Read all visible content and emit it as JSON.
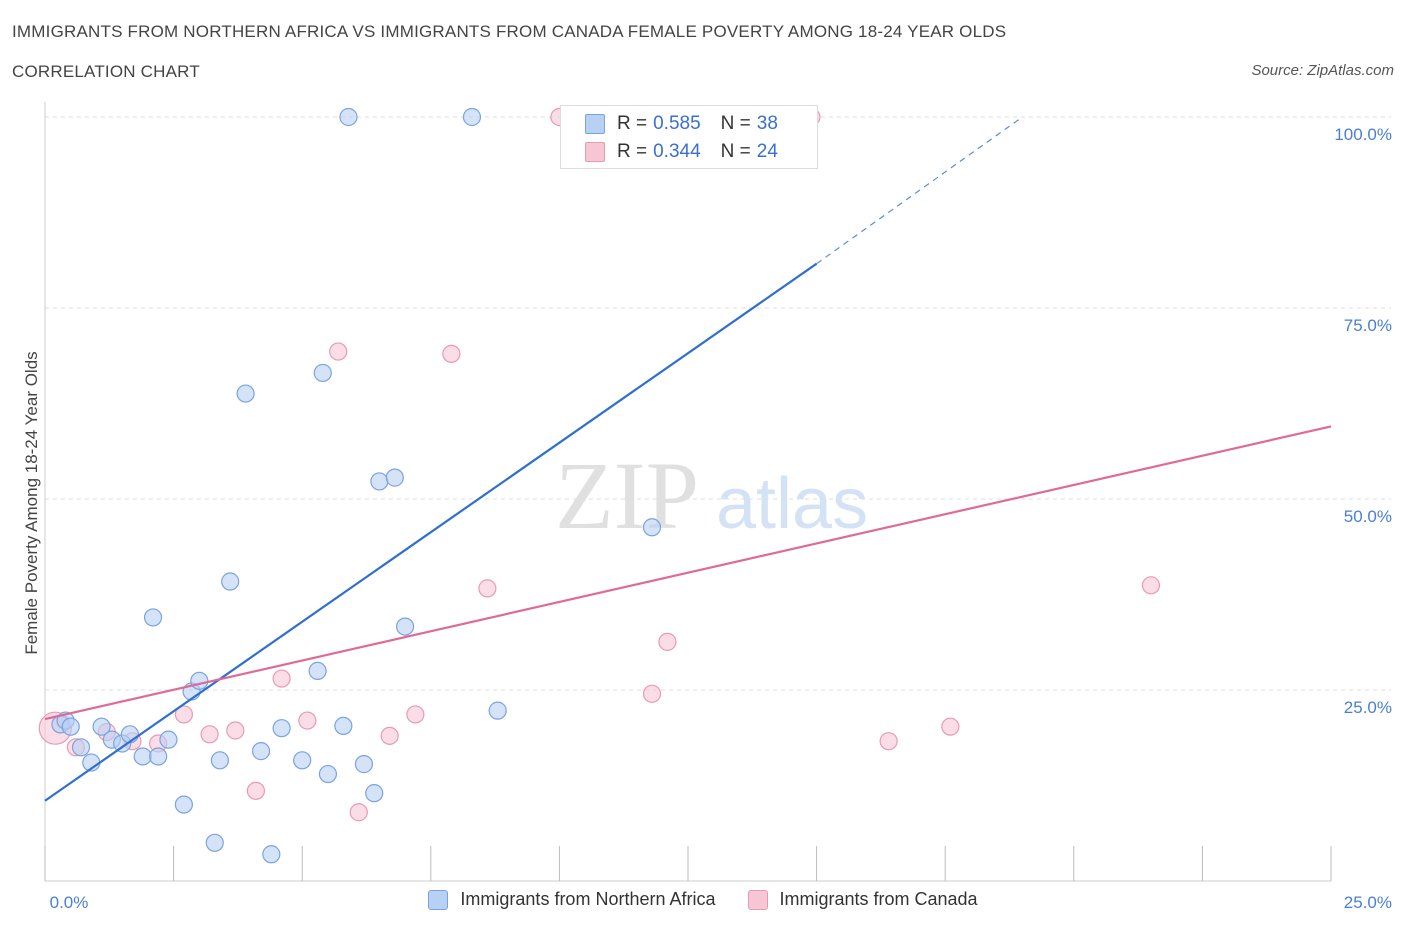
{
  "header": {
    "title": "IMMIGRANTS FROM NORTHERN AFRICA VS IMMIGRANTS FROM CANADA FEMALE POVERTY AMONG 18-24 YEAR OLDS",
    "subtitle": "CORRELATION CHART",
    "source": "Source: ZipAtlas.com"
  },
  "legend": {
    "rows": [
      {
        "r_label": "R =",
        "r_value": "0.585",
        "n_label": "N =",
        "n_value": "38"
      },
      {
        "r_label": "R =",
        "r_value": "0.344",
        "n_label": "N =",
        "n_value": "24"
      }
    ]
  },
  "bottom_legend": {
    "series_1": "Immigrants from Northern Africa",
    "series_2": "Immigrants from Canada"
  },
  "colors": {
    "blue_fill": "#b9d0f5",
    "blue_stroke": "#7aa3e0",
    "blue_line": "#2f6fd0",
    "pink_fill": "#f7c6d5",
    "pink_stroke": "#e99ab3",
    "pink_line": "#e06a96",
    "tick_text": "#4a7fd4",
    "grid": "#dddddd"
  },
  "watermark": {
    "zip": "ZIP",
    "atlas": "atlas"
  },
  "chart_data": {
    "type": "scatter",
    "title": "IMMIGRANTS FROM NORTHERN AFRICA VS IMMIGRANTS FROM CANADA FEMALE POVERTY AMONG 18-24 YEAR OLDS",
    "xlabel": "",
    "ylabel": "Female Poverty Among 18-24 Year Olds",
    "xlim": [
      0,
      25
    ],
    "ylim": [
      0,
      100
    ],
    "x_tick_labels": [
      "0.0%",
      "25.0%"
    ],
    "y_tick_labels": [
      "25.0%",
      "50.0%",
      "75.0%",
      "100.0%"
    ],
    "y_ticks": [
      25,
      50,
      75,
      100
    ],
    "grid": true,
    "legend_position": "top-center",
    "series": [
      {
        "name": "Immigrants from Northern Africa",
        "R": 0.585,
        "N": 38,
        "points": [
          [
            0.3,
            20.5
          ],
          [
            0.4,
            21.0
          ],
          [
            0.5,
            20.2
          ],
          [
            0.7,
            17.5
          ],
          [
            0.9,
            15.5
          ],
          [
            1.1,
            20.2
          ],
          [
            1.3,
            18.5
          ],
          [
            1.5,
            18.0
          ],
          [
            1.65,
            19.2
          ],
          [
            1.9,
            16.3
          ],
          [
            2.1,
            34.5
          ],
          [
            2.2,
            16.3
          ],
          [
            2.4,
            18.5
          ],
          [
            2.7,
            10.0
          ],
          [
            2.85,
            24.8
          ],
          [
            3.0,
            26.2
          ],
          [
            3.3,
            5.0
          ],
          [
            3.4,
            15.8
          ],
          [
            3.6,
            39.2
          ],
          [
            3.9,
            63.8
          ],
          [
            4.2,
            17.0
          ],
          [
            4.4,
            3.5
          ],
          [
            4.6,
            20.0
          ],
          [
            5.0,
            15.8
          ],
          [
            5.3,
            27.5
          ],
          [
            5.4,
            66.5
          ],
          [
            5.5,
            14.0
          ],
          [
            5.8,
            20.3
          ],
          [
            5.9,
            100.0
          ],
          [
            6.2,
            15.3
          ],
          [
            6.4,
            11.5
          ],
          [
            6.5,
            52.3
          ],
          [
            6.8,
            52.8
          ],
          [
            7.0,
            33.3
          ],
          [
            8.3,
            100.0
          ],
          [
            8.8,
            22.3
          ],
          [
            11.8,
            46.3
          ],
          [
            14.5,
            100.0
          ]
        ],
        "trend": {
          "x0": 0,
          "y0": 10.5,
          "x1": 15.0,
          "y1": 80.8,
          "dashed_to": [
            19.0,
            100.0
          ]
        }
      },
      {
        "name": "Immigrants from Canada",
        "R": 0.344,
        "N": 24,
        "points": [
          [
            0.2,
            20.0
          ],
          [
            0.6,
            17.5
          ],
          [
            1.2,
            19.5
          ],
          [
            1.7,
            18.3
          ],
          [
            2.2,
            18.0
          ],
          [
            2.7,
            21.8
          ],
          [
            3.2,
            19.2
          ],
          [
            3.7,
            19.7
          ],
          [
            4.1,
            11.8
          ],
          [
            4.6,
            26.5
          ],
          [
            5.1,
            21.0
          ],
          [
            5.7,
            69.3
          ],
          [
            6.1,
            9.0
          ],
          [
            6.7,
            19.0
          ],
          [
            7.2,
            21.8
          ],
          [
            7.9,
            69.0
          ],
          [
            8.6,
            38.3
          ],
          [
            10.0,
            100.0
          ],
          [
            11.8,
            24.5
          ],
          [
            12.1,
            31.3
          ],
          [
            14.9,
            100.0
          ],
          [
            16.4,
            18.3
          ],
          [
            17.6,
            20.2
          ],
          [
            21.5,
            38.7
          ]
        ],
        "trend": {
          "x0": 0,
          "y0": 21.2,
          "x1": 25.0,
          "y1": 59.5
        }
      }
    ]
  }
}
